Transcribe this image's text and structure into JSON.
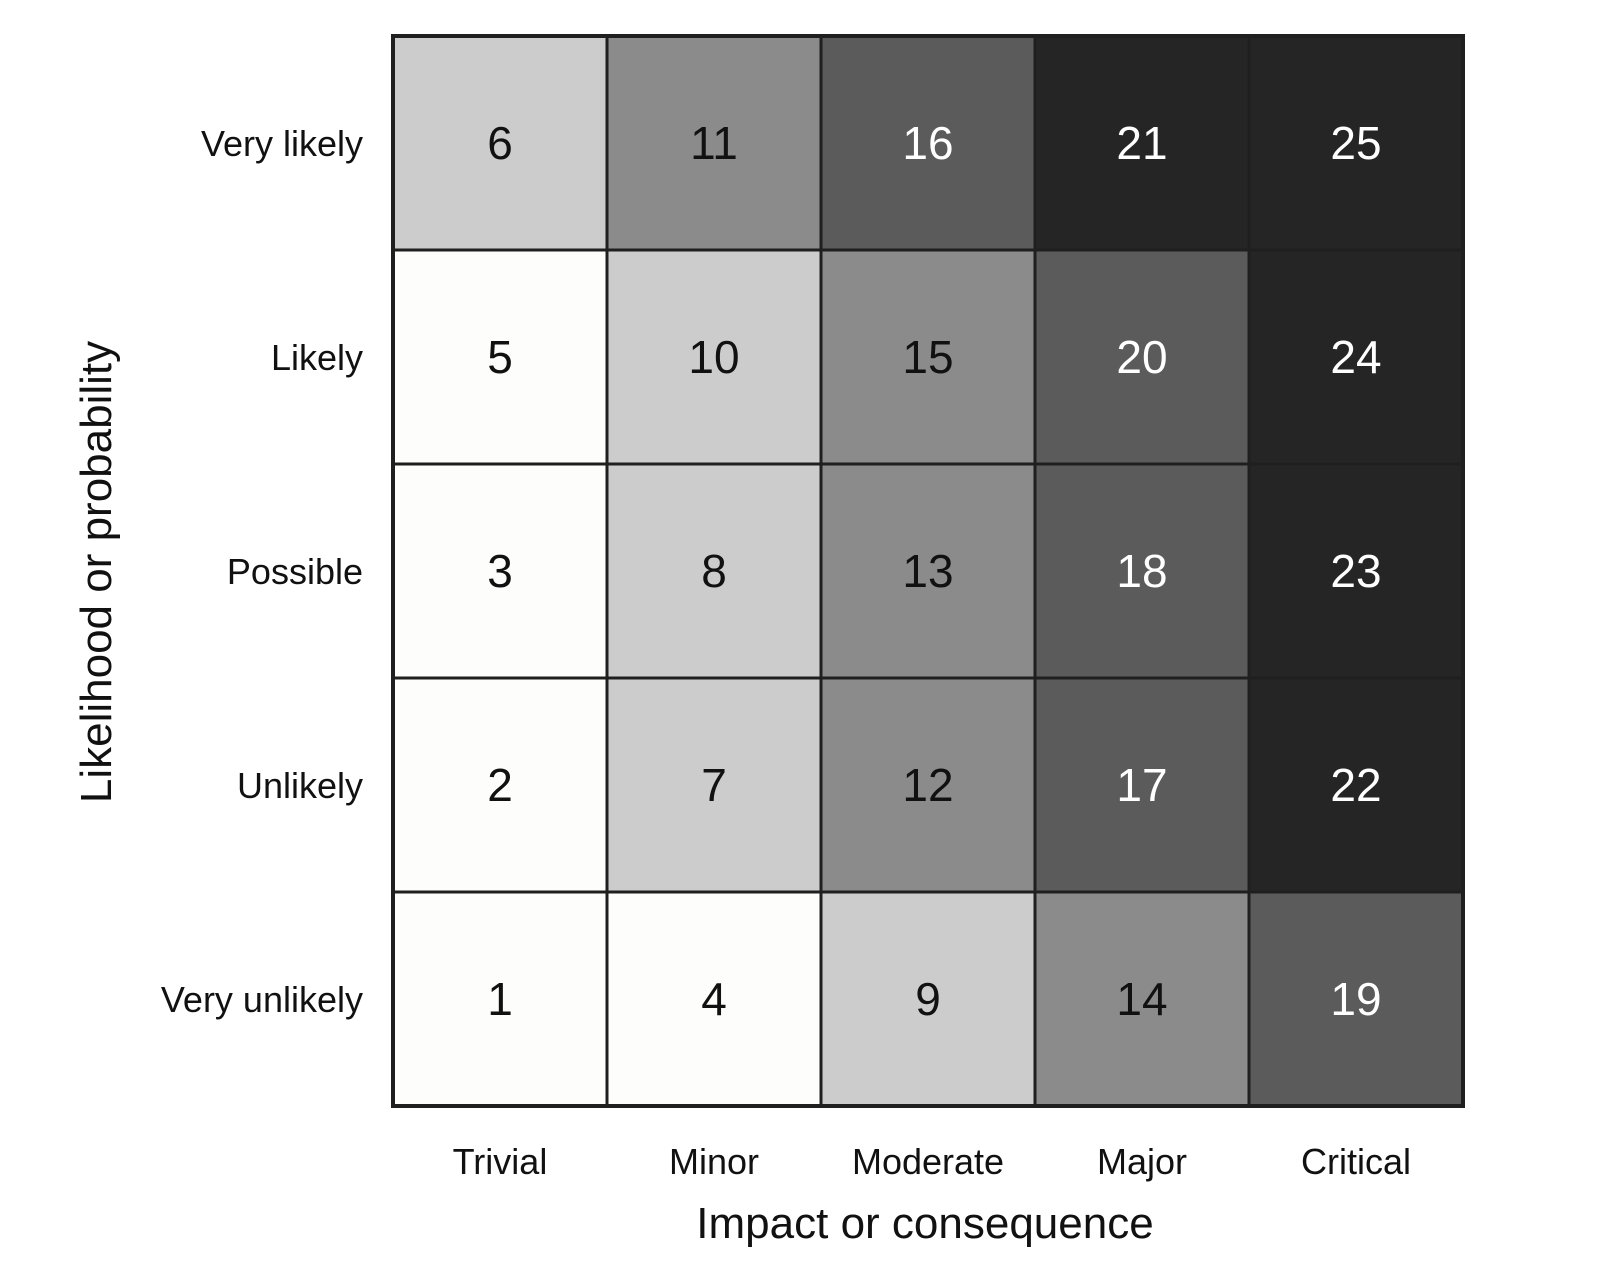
{
  "chart_data": {
    "type": "heatmap",
    "xlabel": "Impact or consequence",
    "ylabel": "Likelihood or probability",
    "x_categories": [
      "Trivial",
      "Minor",
      "Moderate",
      "Major",
      "Critical"
    ],
    "y_categories": [
      "Very likely",
      "Likely",
      "Possible",
      "Unlikely",
      "Very unlikely"
    ],
    "values": [
      [
        6,
        11,
        16,
        21,
        25
      ],
      [
        5,
        10,
        15,
        20,
        24
      ],
      [
        3,
        8,
        13,
        18,
        23
      ],
      [
        2,
        7,
        12,
        17,
        22
      ],
      [
        1,
        4,
        9,
        14,
        19
      ]
    ],
    "levels": [
      [
        2,
        3,
        4,
        5,
        5
      ],
      [
        1,
        2,
        3,
        4,
        5
      ],
      [
        1,
        2,
        3,
        4,
        5
      ],
      [
        1,
        2,
        3,
        4,
        5
      ],
      [
        1,
        1,
        2,
        3,
        4
      ]
    ],
    "level_colors": {
      "1": "#fdfdfb",
      "2": "#cccccc",
      "3": "#8b8b8b",
      "4": "#5b5b5b",
      "5": "#252525"
    },
    "text_colors": {
      "light": "#ffffff",
      "dark": "#111111"
    },
    "grid_color": "#1f1f1f"
  }
}
